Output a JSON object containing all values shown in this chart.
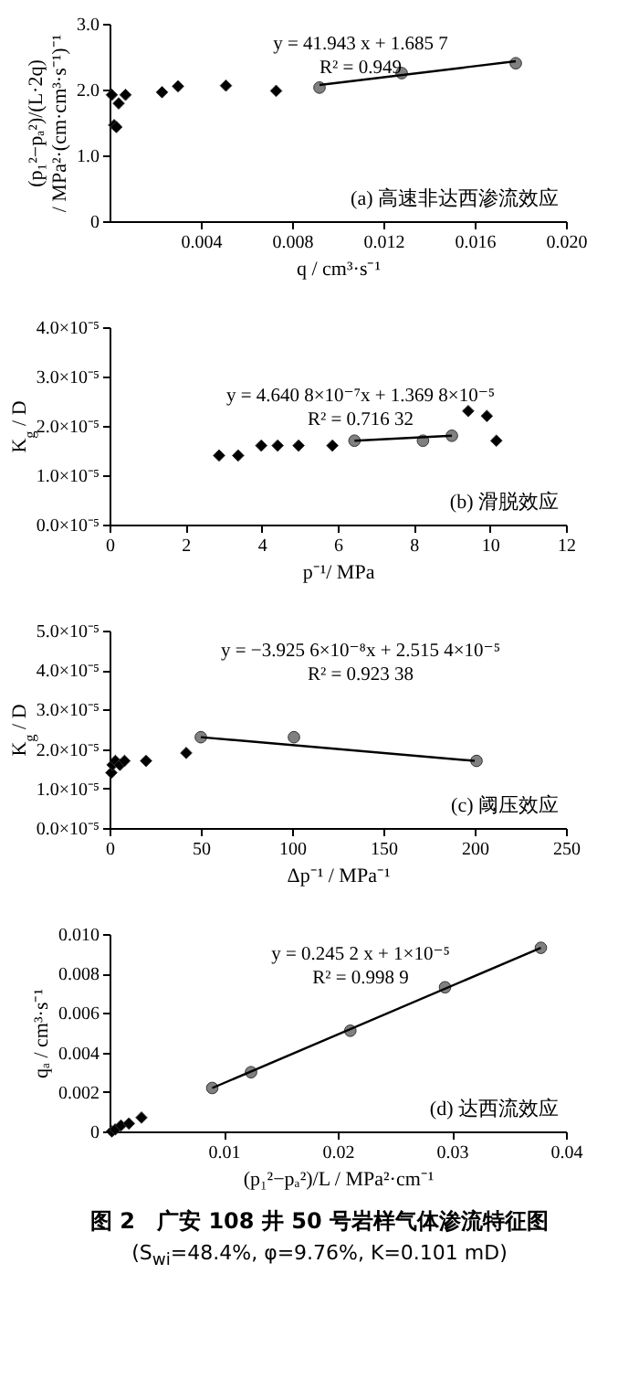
{
  "chart_data": [
    {
      "type": "scatter",
      "xlabel": "q / cm³·s⁻¹",
      "ylabel": "(p₁²−pₐ²)/(L·2q) / MPa²·(cm·cm³·s⁻¹)⁻¹",
      "xlim": [
        0,
        0.02
      ],
      "ylim": [
        0,
        3
      ],
      "xticks": [
        0.004,
        0.008,
        0.012,
        0.016,
        {
          "value": 0.02,
          "label": "0.020"
        }
      ],
      "yticks": [
        0,
        {
          "value": 1,
          "label": "1.0"
        },
        {
          "value": 2,
          "label": "2.0"
        },
        {
          "value": 3,
          "label": "3.0"
        }
      ],
      "series": [
        {
          "type": "scatter",
          "marker": "diamond",
          "color": "#000000",
          "x": [
            0.0001,
            0.0002,
            0.0003,
            0.0004,
            0.0007,
            0.0023,
            0.003,
            0.0051,
            0.0073
          ],
          "values": [
            1.92,
            1.46,
            1.43,
            1.79,
            1.92,
            1.96,
            2.05,
            2.06,
            1.98
          ]
        },
        {
          "type": "scatter",
          "marker": "circle",
          "color": "#808080",
          "x": [
            0.0092,
            0.0128,
            0.0178
          ],
          "values": [
            2.03,
            2.25,
            2.4
          ]
        },
        {
          "type": "line",
          "color": "#000000",
          "x": [
            0.0092,
            0.0178
          ],
          "values": [
            2.07,
            2.43
          ]
        }
      ],
      "annotations": [
        "y = 41.943 x + 1.685 7",
        "R² = 0.949",
        "(a) 高速非达西渗流效应"
      ]
    },
    {
      "type": "scatter",
      "xlabel": "p⁻¹/ MPa",
      "ylabel": "K$_{g}$ / D",
      "xlim": [
        0,
        12
      ],
      "ylim": [
        0,
        4e-05
      ],
      "xticks": [
        0,
        2,
        4,
        6,
        8,
        10,
        12
      ],
      "yticks": [
        {
          "value": 0,
          "label": "0.0×10⁻⁵"
        },
        {
          "value": 1e-05,
          "label": "1.0×10⁻⁵"
        },
        {
          "value": 2e-05,
          "label": "2.0×10⁻⁵"
        },
        {
          "value": 3e-05,
          "label": "3.0×10⁻⁵"
        },
        {
          "value": 4e-05,
          "label": "4.0×10⁻⁵"
        }
      ],
      "series": [
        {
          "type": "scatter",
          "marker": "diamond",
          "color": "#000000",
          "x": [
            2.88,
            3.38,
            3.99,
            4.42,
            4.97,
            5.86,
            9.43,
            9.92,
            10.17
          ],
          "values": [
            1.4e-05,
            1.4e-05,
            1.6e-05,
            1.6e-05,
            1.6e-05,
            1.6e-05,
            2.3e-05,
            2.2e-05,
            1.7e-05
          ]
        },
        {
          "type": "scatter",
          "marker": "circle",
          "color": "#808080",
          "x": [
            6.44,
            8.24,
            9.0
          ],
          "values": [
            1.7e-05,
            1.7e-05,
            1.8e-05
          ]
        },
        {
          "type": "line",
          "color": "#000000",
          "x": [
            6.44,
            9.0
          ],
          "values": [
            1.7e-05,
            1.8e-05
          ]
        }
      ],
      "annotations": [
        "y = 4.640 8×10⁻⁷x + 1.369 8×10⁻⁵",
        "R² = 0.716 32",
        "(b) 滑脱效应"
      ]
    },
    {
      "type": "scatter",
      "xlabel": "Δp⁻¹ / MPa⁻¹",
      "ylabel": "K$_{g}$ / D",
      "xlim": [
        0,
        250
      ],
      "ylim": [
        0,
        5e-05
      ],
      "xticks": [
        0,
        50,
        100,
        150,
        200,
        250
      ],
      "yticks": [
        {
          "value": 0,
          "label": "0.0×10⁻⁵"
        },
        {
          "value": 1e-05,
          "label": "1.0×10⁻⁵"
        },
        {
          "value": 2e-05,
          "label": "2.0×10⁻⁵"
        },
        {
          "value": 3e-05,
          "label": "3.0×10⁻⁵"
        },
        {
          "value": 4e-05,
          "label": "4.0×10⁻⁵"
        },
        {
          "value": 5e-05,
          "label": "5.0×10⁻⁵"
        }
      ],
      "series": [
        {
          "type": "scatter",
          "marker": "diamond",
          "color": "#000000",
          "x": [
            1,
            1.6,
            3.2,
            5.7,
            8.2,
            20,
            42
          ],
          "values": [
            1.4e-05,
            1.6e-05,
            1.7e-05,
            1.6e-05,
            1.7e-05,
            1.7e-05,
            1.9e-05
          ]
        },
        {
          "type": "scatter",
          "marker": "circle",
          "color": "#808080",
          "x": [
            50,
            101,
            201
          ],
          "values": [
            2.3e-05,
            2.3e-05,
            1.7e-05
          ]
        },
        {
          "type": "line",
          "color": "#000000",
          "x": [
            50,
            200
          ],
          "values": [
            2.3e-05,
            1.7e-05
          ]
        }
      ],
      "annotations": [
        "y = −3.925 6×10⁻⁸x + 2.515 4×10⁻⁵",
        "R² = 0.923 38",
        "(c) 阈压效应"
      ]
    },
    {
      "type": "scatter",
      "xlabel": "(p₁²−pₐ²)/L / MPa²·cm⁻¹",
      "ylabel": "qₐ / cm³·s⁻¹",
      "xlim": [
        0,
        0.04
      ],
      "ylim": [
        0,
        0.01
      ],
      "xticks": [
        0.01,
        0.02,
        0.03,
        0.04
      ],
      "yticks": [
        0,
        0.002,
        0.004,
        0.006,
        0.008,
        {
          "value": 0.01,
          "label": "0.010"
        }
      ],
      "series": [
        {
          "type": "scatter",
          "marker": "diamond",
          "color": "#000000",
          "x": [
            0.0002,
            0.0005,
            0.001,
            0.0017,
            0.0028
          ],
          "values": [
            0.0,
            0.0001,
            0.0003,
            0.0004,
            0.0007
          ]
        },
        {
          "type": "scatter",
          "marker": "circle",
          "color": "#808080",
          "x": [
            0.009,
            0.0124,
            0.0211,
            0.0294,
            0.0378
          ],
          "values": [
            0.0022,
            0.003,
            0.0051,
            0.0073,
            0.0093
          ]
        },
        {
          "type": "line",
          "color": "#000000",
          "x": [
            0.009,
            0.0378
          ],
          "values": [
            0.0022,
            0.0093
          ]
        }
      ],
      "annotations": [
        "y = 0.245 2 x + 1×10⁻⁵",
        "R² = 0.998 9",
        "(d) 达西流效应",
        "图 2　广安 108 井 50 号岩样气体渗流特征图",
        "(S$_{wi}$=48.4%, φ=9.76%, K=0.101 mD)"
      ]
    }
  ]
}
